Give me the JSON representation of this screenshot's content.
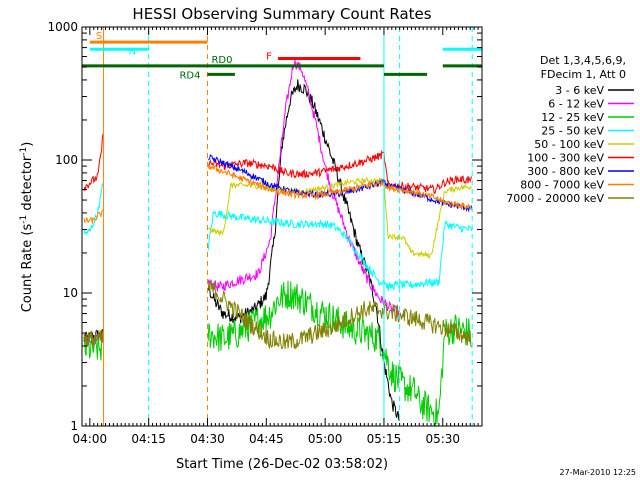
{
  "chart_data": {
    "type": "line",
    "title": "HESSI Observing Summary Count Rates",
    "xlabel": "Start Time (26-Dec-02 03:58:02)",
    "ylabel_main": "Count Rate (s",
    "ylabel_sup1": "-1",
    "ylabel_mid": " detector",
    "ylabel_sup2": "-1",
    "ylabel_end": ")",
    "yscale": "log",
    "ylim": [
      1,
      1000
    ],
    "xlim_minutes": [
      0,
      102
    ],
    "y_ticks": [
      "1",
      "10",
      "100",
      "1000"
    ],
    "x_ticks": [
      {
        "label": "04:00",
        "m": 2
      },
      {
        "label": "04:15",
        "m": 17
      },
      {
        "label": "04:30",
        "m": 32
      },
      {
        "label": "04:45",
        "m": 47
      },
      {
        "label": "05:00",
        "m": 62
      },
      {
        "label": "05:15",
        "m": 77
      },
      {
        "label": "05:30",
        "m": 92
      }
    ],
    "legend": {
      "header": [
        "Det 1,3,4,5,6,9,",
        "FDecim 1, Att 0"
      ],
      "placement": "right",
      "entries": [
        {
          "label": "3 - 6 keV",
          "color": "#000000"
        },
        {
          "label": "6 - 12 keV",
          "color": "#ff00ff"
        },
        {
          "label": "12 - 25 keV",
          "color": "#00cc00"
        },
        {
          "label": "25 - 50 keV",
          "color": "#00ffff"
        },
        {
          "label": "50 - 100 keV",
          "color": "#cccc00"
        },
        {
          "label": "100 - 300 keV",
          "color": "#ff0000"
        },
        {
          "label": "300 - 800 keV",
          "color": "#0000ff"
        },
        {
          "label": "800 - 7000 keV",
          "color": "#ff8000"
        },
        {
          "label": "7000 - 20000 keV",
          "color": "#808000"
        }
      ]
    },
    "annotations": {
      "bars": [
        {
          "label": "S",
          "color": "#ff8000",
          "y": 770,
          "x": [
            2,
            32
          ]
        },
        {
          "label": "N",
          "color": "#00ffff",
          "y": 680,
          "x": [
            2,
            17
          ]
        },
        {
          "label": "N",
          "color": "#00ffff",
          "y": 680,
          "x": [
            92,
            102
          ]
        },
        {
          "label": "F",
          "color": "#ff0000",
          "y": 580,
          "x": [
            50,
            71
          ]
        },
        {
          "label": "RD0",
          "color": "#006600",
          "y": 510,
          "x": [
            0,
            77
          ]
        },
        {
          "label": "RD0",
          "color": "#006600",
          "y": 510,
          "x": [
            92,
            102
          ]
        },
        {
          "label": "RD4",
          "color": "#006600",
          "y": 440,
          "x": [
            32,
            39
          ]
        },
        {
          "label": "RD4",
          "color": "#006600",
          "y": 440,
          "x": [
            77,
            88
          ]
        }
      ],
      "vlines": [
        {
          "m": 5.5,
          "color": "#ff8000",
          "style": "solid"
        },
        {
          "m": 17,
          "color": "#00ffff",
          "style": "dashed"
        },
        {
          "m": 32,
          "color": "#ff8000",
          "style": "dashed"
        },
        {
          "m": 77,
          "color": "#00ffff",
          "style": "solid"
        },
        {
          "m": 81,
          "color": "#00ffff",
          "style": "dashed"
        },
        {
          "m": 99.5,
          "color": "#00ffff",
          "style": "dashed"
        }
      ]
    },
    "series": [
      {
        "name": "3 - 6 keV",
        "color": "#000000",
        "noise": 0.05,
        "points": [
          [
            0.5,
            4.5
          ],
          [
            3.5,
            4.8
          ],
          [
            5.3,
            4.8
          ],
          [
            32.2,
            11
          ],
          [
            34,
            8.5
          ],
          [
            36,
            7
          ],
          [
            40,
            6.5
          ],
          [
            44,
            7.5
          ],
          [
            47,
            9.5
          ],
          [
            49,
            25
          ],
          [
            51,
            130
          ],
          [
            53,
            280
          ],
          [
            55,
            370
          ],
          [
            57,
            340
          ],
          [
            59,
            260
          ],
          [
            61,
            180
          ],
          [
            63,
            120
          ],
          [
            65,
            80
          ],
          [
            67,
            50
          ],
          [
            69,
            32
          ],
          [
            71,
            20
          ],
          [
            73,
            14
          ],
          [
            75,
            8
          ],
          [
            77,
            3
          ],
          [
            79,
            1.5
          ],
          [
            81,
            1.1
          ]
        ]
      },
      {
        "name": "6 - 12 keV",
        "color": "#ff00ff",
        "noise": 0.04,
        "points": [
          [
            0.5,
            4.5
          ],
          [
            5.3,
            4.5
          ],
          [
            32.2,
            12
          ],
          [
            35,
            11
          ],
          [
            40,
            12.5
          ],
          [
            45,
            14
          ],
          [
            48,
            25
          ],
          [
            50,
            80
          ],
          [
            52,
            250
          ],
          [
            54,
            550
          ],
          [
            56,
            480
          ],
          [
            58,
            300
          ],
          [
            60,
            170
          ],
          [
            62,
            90
          ],
          [
            64,
            55
          ],
          [
            66,
            38
          ],
          [
            68,
            26
          ],
          [
            70,
            19
          ],
          [
            72,
            14
          ],
          [
            74,
            11
          ],
          [
            76,
            9
          ],
          [
            78,
            8
          ],
          [
            79,
            7.5
          ],
          [
            81,
            7
          ]
        ]
      },
      {
        "name": "12 - 25 keV",
        "color": "#00cc00",
        "noise": 0.12,
        "points": [
          [
            0.5,
            3.8
          ],
          [
            5.3,
            3.8
          ],
          [
            32.2,
            5
          ],
          [
            36,
            4.5
          ],
          [
            40,
            5
          ],
          [
            44,
            6
          ],
          [
            48,
            7
          ],
          [
            50,
            9
          ],
          [
            53,
            10
          ],
          [
            56,
            9
          ],
          [
            60,
            7.5
          ],
          [
            64,
            6.5
          ],
          [
            68,
            5.5
          ],
          [
            72,
            5
          ],
          [
            76,
            4.5
          ],
          [
            79,
            2.5
          ],
          [
            82,
            2
          ],
          [
            85,
            1.8
          ],
          [
            86,
            1.5
          ],
          [
            91,
            1.2
          ],
          [
            92.5,
            5
          ],
          [
            95,
            5.5
          ],
          [
            99,
            5
          ]
        ]
      },
      {
        "name": "25 - 50 keV",
        "color": "#00ffff",
        "noise": 0.03,
        "points": [
          [
            0.5,
            28
          ],
          [
            2,
            29
          ],
          [
            4,
            40
          ],
          [
            5.3,
            65
          ],
          [
            32.2,
            22
          ],
          [
            33.5,
            40
          ],
          [
            40,
            37
          ],
          [
            46,
            35
          ],
          [
            50,
            34
          ],
          [
            54,
            33
          ],
          [
            58,
            33
          ],
          [
            62,
            33
          ],
          [
            64,
            32
          ],
          [
            66,
            29
          ],
          [
            67.5,
            26
          ],
          [
            68,
            25
          ],
          [
            72,
            17
          ],
          [
            76,
            12
          ],
          [
            77,
            12.5
          ],
          [
            78,
            11
          ],
          [
            80,
            11.5
          ],
          [
            84,
            11.5
          ],
          [
            88,
            12
          ],
          [
            91,
            12
          ],
          [
            92.5,
            33
          ],
          [
            96,
            31
          ],
          [
            99.5,
            30
          ]
        ]
      },
      {
        "name": "50 - 100 keV",
        "color": "#cccc00",
        "noise": 0.02,
        "points": [
          [
            32.2,
            30
          ],
          [
            34,
            29
          ],
          [
            36,
            28
          ],
          [
            38,
            65
          ],
          [
            44,
            64
          ],
          [
            50,
            60
          ],
          [
            56,
            58
          ],
          [
            62,
            62
          ],
          [
            68,
            68
          ],
          [
            72,
            70
          ],
          [
            77,
            70
          ],
          [
            78,
            27
          ],
          [
            82,
            26
          ],
          [
            84,
            20
          ],
          [
            89,
            19
          ],
          [
            92.5,
            58
          ],
          [
            96,
            62
          ],
          [
            99.5,
            63
          ]
        ]
      },
      {
        "name": "100 - 300 keV",
        "color": "#ff0000",
        "noise": 0.03,
        "points": [
          [
            0.5,
            62
          ],
          [
            4,
            75
          ],
          [
            5,
            120
          ],
          [
            5.3,
            150
          ],
          [
            32.2,
            95
          ],
          [
            36,
            90
          ],
          [
            42,
            95
          ],
          [
            48,
            90
          ],
          [
            52,
            80
          ],
          [
            56,
            78
          ],
          [
            60,
            80
          ],
          [
            66,
            88
          ],
          [
            72,
            98
          ],
          [
            77,
            110
          ],
          [
            78,
            65
          ],
          [
            84,
            63
          ],
          [
            90,
            60
          ],
          [
            92.5,
            68
          ],
          [
            96,
            72
          ],
          [
            99.5,
            70
          ]
        ]
      },
      {
        "name": "300 - 800 keV",
        "color": "#0000ff",
        "noise": 0.025,
        "points": [
          [
            32.2,
            105
          ],
          [
            36,
            95
          ],
          [
            42,
            80
          ],
          [
            48,
            65
          ],
          [
            54,
            57
          ],
          [
            60,
            55
          ],
          [
            66,
            56
          ],
          [
            72,
            62
          ],
          [
            77,
            68
          ],
          [
            78,
            64
          ],
          [
            84,
            57
          ],
          [
            90,
            50
          ],
          [
            92.5,
            47
          ],
          [
            96,
            45
          ],
          [
            99.5,
            43
          ]
        ]
      },
      {
        "name": "800 - 7000 keV",
        "color": "#ff8000",
        "noise": 0.025,
        "points": [
          [
            0.5,
            35
          ],
          [
            3,
            35
          ],
          [
            4,
            38
          ],
          [
            5.3,
            40
          ],
          [
            32.2,
            90
          ],
          [
            36,
            82
          ],
          [
            42,
            70
          ],
          [
            48,
            60
          ],
          [
            54,
            55
          ],
          [
            60,
            54
          ],
          [
            66,
            58
          ],
          [
            72,
            64
          ],
          [
            77,
            68
          ],
          [
            78,
            62
          ],
          [
            84,
            58
          ],
          [
            90,
            52
          ],
          [
            92.5,
            48
          ],
          [
            96,
            46
          ],
          [
            99.5,
            44
          ]
        ]
      },
      {
        "name": "7000 - 20000 keV",
        "color": "#808000",
        "noise": 0.07,
        "points": [
          [
            0.5,
            4.5
          ],
          [
            5.3,
            4.5
          ],
          [
            32.2,
            11
          ],
          [
            34,
            10.5
          ],
          [
            36,
            9
          ],
          [
            40,
            7
          ],
          [
            44,
            5.5
          ],
          [
            48,
            4.5
          ],
          [
            52,
            4.2
          ],
          [
            56,
            4.5
          ],
          [
            60,
            5
          ],
          [
            64,
            5.5
          ],
          [
            68,
            6.5
          ],
          [
            72,
            7.5
          ],
          [
            76,
            7.5
          ],
          [
            80,
            7
          ],
          [
            84,
            6.5
          ],
          [
            88,
            6
          ],
          [
            92,
            5.5
          ],
          [
            96,
            5
          ],
          [
            99.5,
            4.5
          ]
        ]
      }
    ],
    "gaps": [
      [
        5.4,
        32.1
      ]
    ]
  },
  "footer": {
    "timestamp": "27-Mar-2010 12:25"
  }
}
